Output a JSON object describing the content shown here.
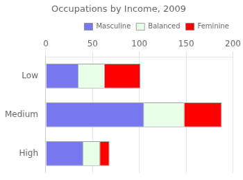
{
  "chart_data": {
    "type": "bar",
    "orientation": "horizontal",
    "stacked": true,
    "title": "Occupations by Income, 2009",
    "categories": [
      "High",
      "Medium",
      "Low"
    ],
    "series": [
      {
        "name": "Masculine",
        "color": "#7777ee",
        "values": [
          40,
          105,
          35
        ]
      },
      {
        "name": "Balanced",
        "color": "#e8ffe8",
        "values": [
          18,
          43,
          28
        ]
      },
      {
        "name": "Feminine",
        "color": "#ff0000",
        "values": [
          10,
          40,
          38
        ]
      }
    ],
    "xlim": [
      0,
      200
    ],
    "xticks": [
      0,
      50,
      100,
      150,
      200
    ],
    "grid": true,
    "legend": "upper right"
  }
}
